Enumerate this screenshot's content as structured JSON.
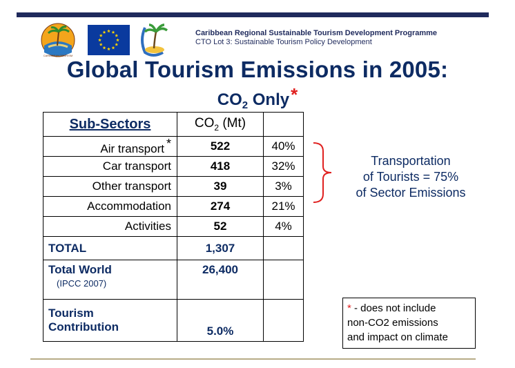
{
  "header": {
    "programme_line1": "Caribbean Regional Sustainable Tourism Development Programme",
    "programme_line2": "CTO Lot 3: Sustainable Tourism Policy Development",
    "logo_text": "CARIBBEAN TOURISM ORGANIZATION"
  },
  "title": "Global Tourism Emissions in 2005:",
  "subtitle": {
    "co": "CO",
    "sub": "2",
    "rest": " Only",
    "star": "*"
  },
  "table": {
    "header": {
      "subsectors": "Sub-Sectors",
      "co2_main": "CO",
      "co2_sub": "2",
      "co2_unit": " (Mt)"
    },
    "rows": [
      {
        "name": "Air transport",
        "asterisk": "*",
        "value": "522",
        "pct": "40%"
      },
      {
        "name": "Car transport",
        "asterisk": "",
        "value": "418",
        "pct": "32%"
      },
      {
        "name": "Other transport",
        "asterisk": "",
        "value": "39",
        "pct": "3%"
      },
      {
        "name": "Accommodation",
        "asterisk": "",
        "value": "274",
        "pct": "21%"
      },
      {
        "name": "Activities",
        "asterisk": "",
        "value": "52",
        "pct": "4%"
      }
    ],
    "total": {
      "label": "TOTAL",
      "value": "1,307"
    },
    "world": {
      "label": "Total World",
      "ref": "(IPCC 2007)",
      "value": "26,400"
    },
    "contribution": {
      "label_line1": "Tourism",
      "label_line2": "Contribution",
      "value": "5.0%"
    }
  },
  "transport_note": {
    "line1": "Transportation",
    "line2": "of Tourists = 75%",
    "line3": "of Sector Emissions"
  },
  "footnote": {
    "star": "*",
    "line1": " - does not include",
    "line2": "non-CO2 emissions",
    "line3": "and impact on climate"
  },
  "colors": {
    "navy": "#0d2b63",
    "accent_red": "#e0201f",
    "bar": "#1f2a5c",
    "rule": "#b7ab86",
    "eu_blue": "#0a3a9e",
    "eu_gold": "#ffd400"
  }
}
